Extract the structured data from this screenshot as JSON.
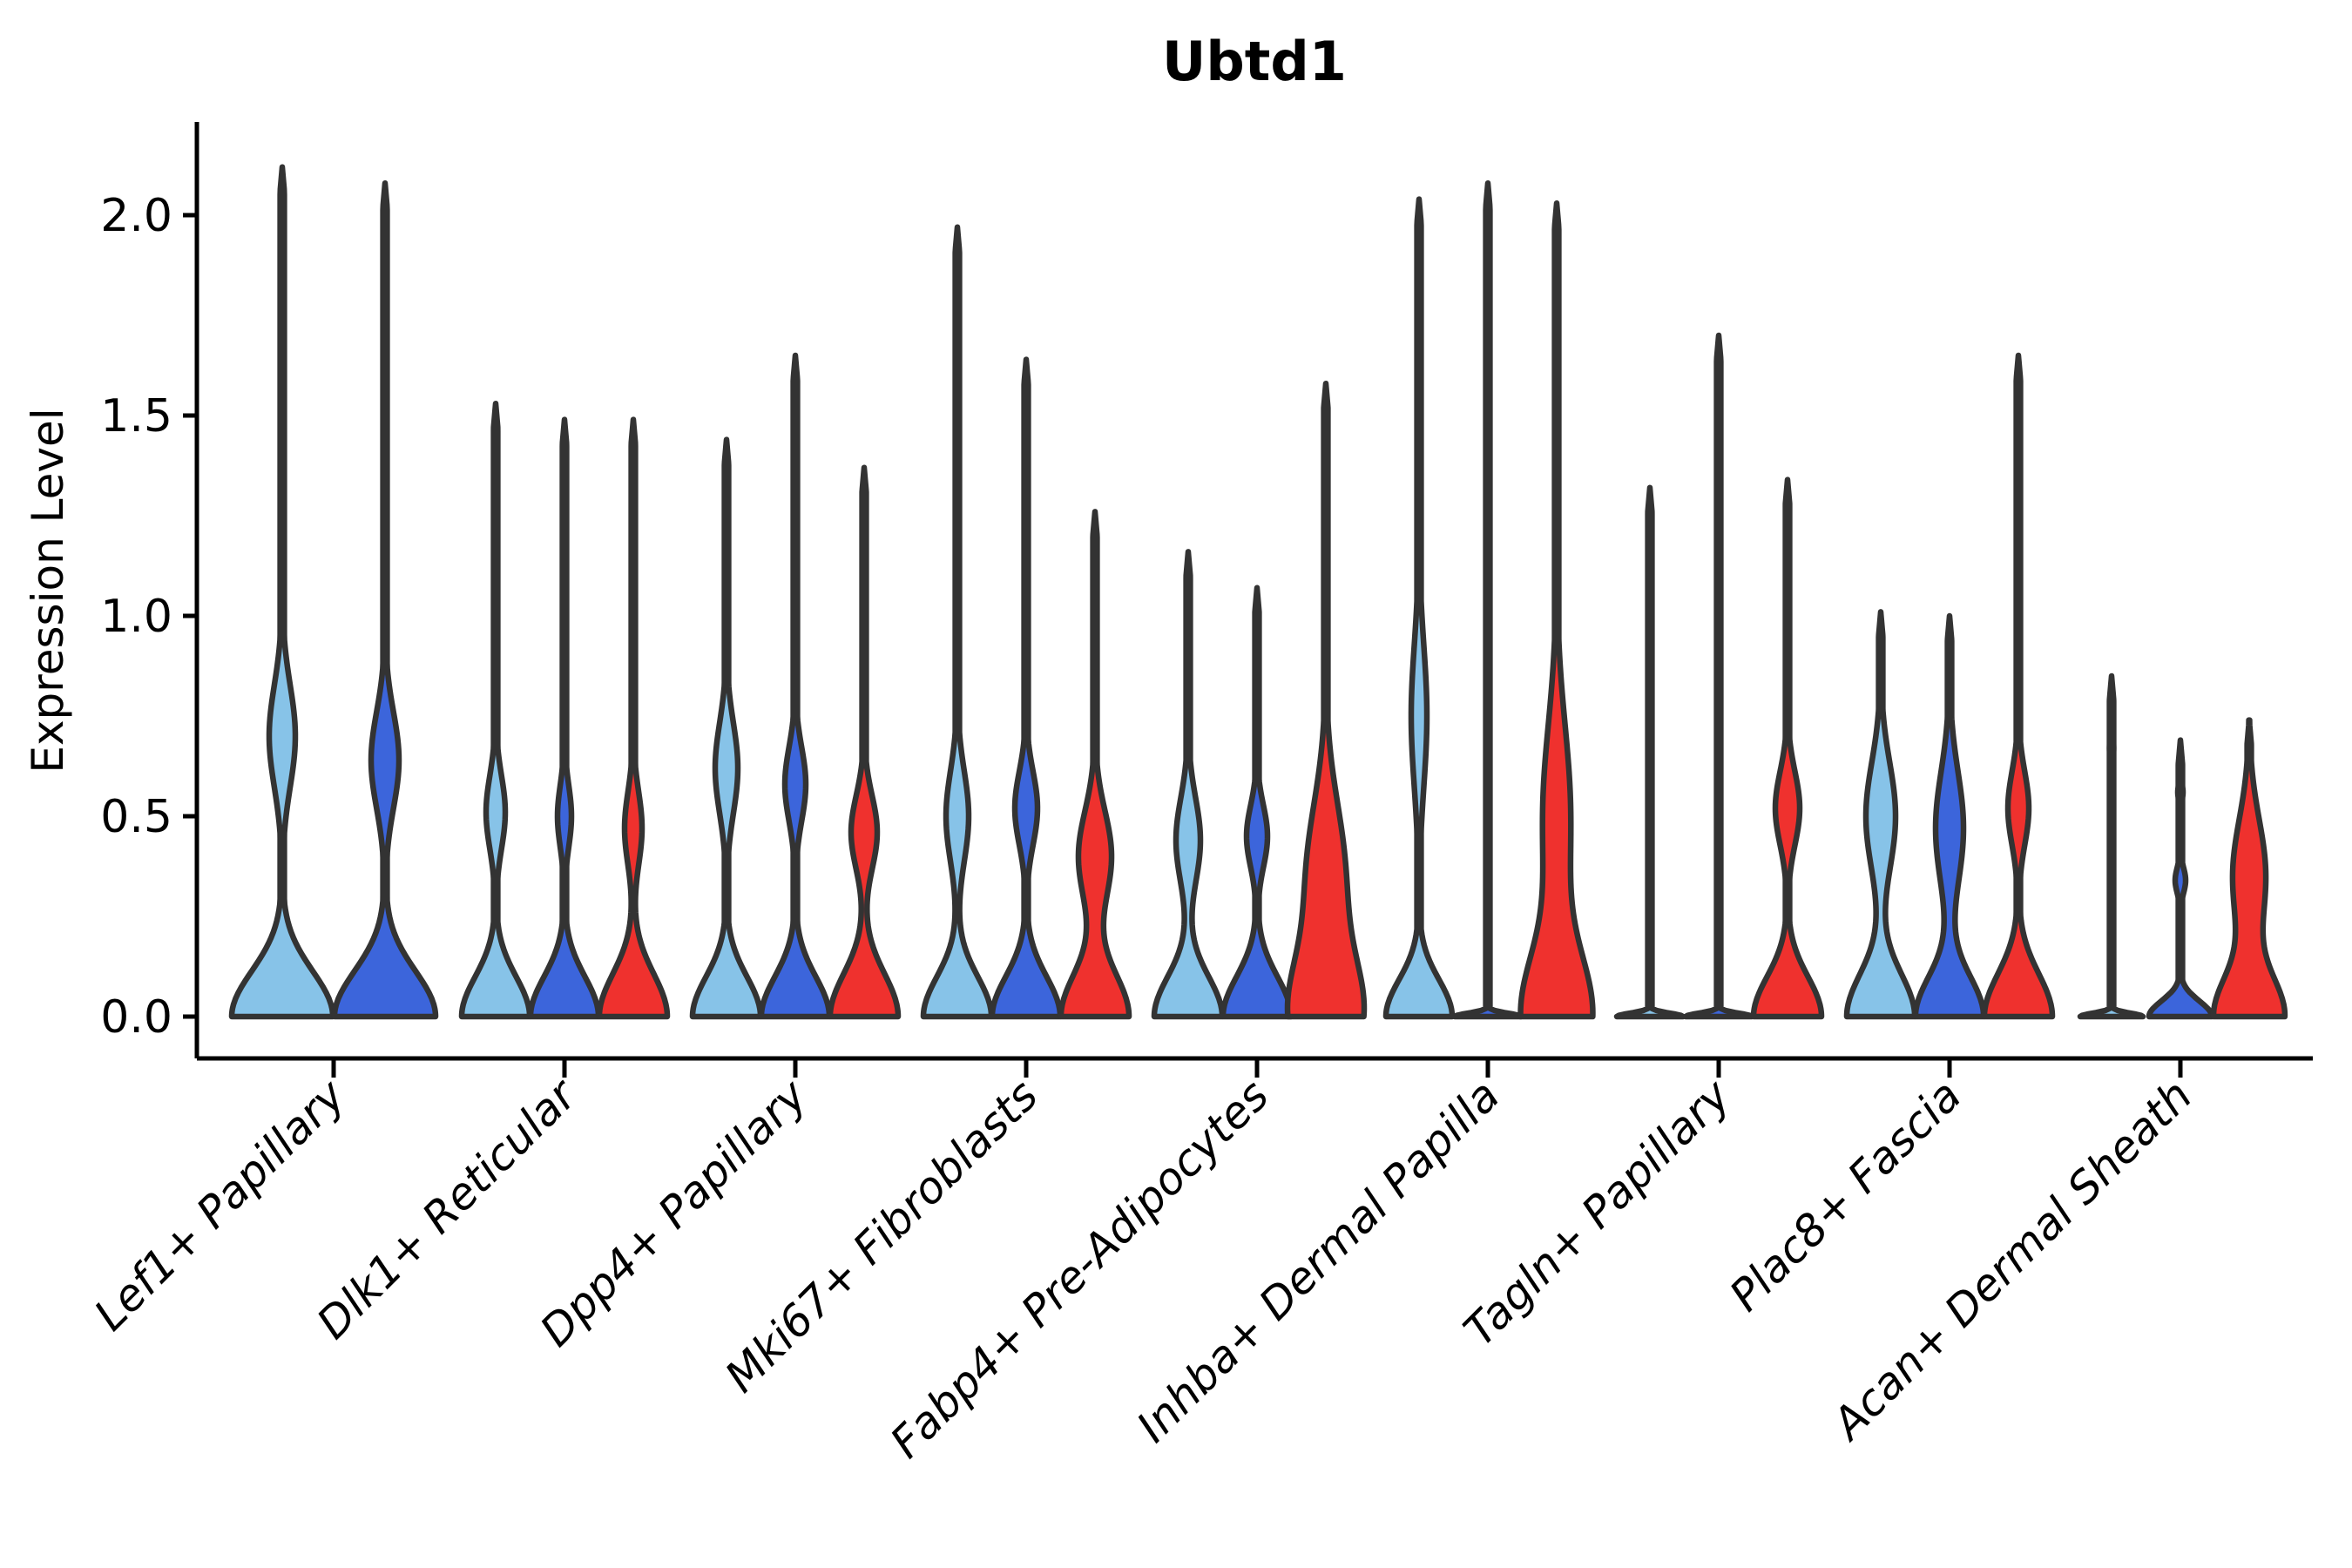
{
  "figure": {
    "title": "Ubtd1",
    "y_axis_label": "Expression Level"
  },
  "chart_data": {
    "type": "violin",
    "title": "Ubtd1",
    "ylabel": "Expression Level",
    "xlabel": "",
    "ylim": [
      -0.1,
      2.23
    ],
    "yticks": [
      "0.0",
      "0.5",
      "1.0",
      "1.5",
      "2.0"
    ],
    "ytick_values": [
      0.0,
      0.5,
      1.0,
      1.5,
      2.0
    ],
    "grid": false,
    "legend_position": "none",
    "series": [
      "light_blue",
      "dark_blue",
      "red"
    ],
    "colors": {
      "light_blue": "#87C3E8",
      "dark_blue": "#3C65DB",
      "red": "#EF312E",
      "outline": "#333333",
      "axis": "#000000"
    },
    "categories": [
      "Lef1+ Papillary",
      "Dlk1+ Reticular",
      "Dpp4+ Papillary",
      "Mki67+ Fibroblasts",
      "Fabp4+ Pre-Adipocytes",
      "Inhba+ Dermal Papilla",
      "Tagln+ Papillary",
      "Plac8+ Fascia",
      "Acan+ Dermal Sheath"
    ],
    "violins": [
      {
        "category": 0,
        "series": "light_blue",
        "max": 2.12,
        "base": [
          58,
          0.16
        ],
        "bulges": [
          [
            0.7,
            15,
            0.18
          ]
        ]
      },
      {
        "category": 0,
        "series": "dark_blue",
        "max": 2.08,
        "base": [
          58,
          0.16
        ],
        "bulges": [
          [
            0.64,
            16,
            0.17
          ]
        ]
      },
      {
        "category": 1,
        "series": "light_blue",
        "max": 1.53,
        "base": [
          39,
          0.14
        ],
        "bulges": [
          [
            0.51,
            11,
            0.13
          ]
        ]
      },
      {
        "category": 1,
        "series": "dark_blue",
        "max": 1.49,
        "base": [
          39,
          0.14
        ],
        "bulges": [
          [
            0.5,
            8,
            0.11
          ]
        ]
      },
      {
        "category": 1,
        "series": "red",
        "max": 1.49,
        "base": [
          39,
          0.15
        ],
        "bulges": [
          [
            0.47,
            10,
            0.13
          ]
        ]
      },
      {
        "category": 2,
        "series": "light_blue",
        "max": 1.44,
        "base": [
          39,
          0.14
        ],
        "bulges": [
          [
            0.62,
            13,
            0.16
          ]
        ]
      },
      {
        "category": 2,
        "series": "dark_blue",
        "max": 1.65,
        "base": [
          39,
          0.14
        ],
        "bulges": [
          [
            0.58,
            12,
            0.13
          ]
        ]
      },
      {
        "category": 2,
        "series": "red",
        "max": 1.37,
        "base": [
          39,
          0.15
        ],
        "bulges": [
          [
            0.46,
            15,
            0.13
          ]
        ]
      },
      {
        "category": 3,
        "series": "light_blue",
        "max": 1.97,
        "base": [
          39,
          0.14
        ],
        "bulges": [
          [
            0.5,
            13,
            0.16
          ]
        ]
      },
      {
        "category": 3,
        "series": "dark_blue",
        "max": 1.64,
        "base": [
          39,
          0.14
        ],
        "bulges": [
          [
            0.52,
            13,
            0.13
          ]
        ]
      },
      {
        "category": 3,
        "series": "red",
        "max": 1.26,
        "base": [
          39,
          0.15
        ],
        "bulges": [
          [
            0.4,
            19,
            0.16
          ]
        ]
      },
      {
        "category": 4,
        "series": "light_blue",
        "max": 1.16,
        "base": [
          39,
          0.14
        ],
        "bulges": [
          [
            0.44,
            14,
            0.15
          ]
        ]
      },
      {
        "category": 4,
        "series": "dark_blue",
        "max": 1.07,
        "base": [
          39,
          0.14
        ],
        "bulges": [
          [
            0.45,
            12,
            0.11
          ]
        ]
      },
      {
        "category": 4,
        "series": "red",
        "max": 1.58,
        "base": [
          40,
          0.2
        ],
        "bulges": [
          [
            0.35,
            22,
            0.26
          ]
        ]
      },
      {
        "category": 5,
        "series": "light_blue",
        "max": 2.04,
        "base": [
          38,
          0.13
        ],
        "bulges": [
          [
            0.75,
            9,
            0.25
          ]
        ]
      },
      {
        "category": 5,
        "series": "dark_blue",
        "max": 2.08,
        "base": [
          38,
          0.012
        ],
        "bulges": []
      },
      {
        "category": 5,
        "series": "red",
        "max": 2.03,
        "base": [
          40,
          0.22
        ],
        "bulges": [
          [
            0.5,
            16,
            0.32
          ]
        ]
      },
      {
        "category": 6,
        "series": "light_blue",
        "max": 1.32,
        "base": [
          38,
          0.012
        ],
        "bulges": []
      },
      {
        "category": 6,
        "series": "dark_blue",
        "max": 1.7,
        "base": [
          38,
          0.012
        ],
        "bulges": []
      },
      {
        "category": 6,
        "series": "red",
        "max": 1.34,
        "base": [
          39,
          0.14
        ],
        "bulges": [
          [
            0.52,
            14,
            0.13
          ]
        ]
      },
      {
        "category": 7,
        "series": "light_blue",
        "max": 1.01,
        "base": [
          39,
          0.15
        ],
        "bulges": [
          [
            0.5,
            17,
            0.19
          ]
        ]
      },
      {
        "category": 7,
        "series": "dark_blue",
        "max": 1.0,
        "base": [
          39,
          0.14
        ],
        "bulges": [
          [
            0.47,
            16,
            0.2
          ]
        ]
      },
      {
        "category": 7,
        "series": "red",
        "max": 1.65,
        "base": [
          39,
          0.15
        ],
        "bulges": [
          [
            0.52,
            12,
            0.13
          ]
        ]
      },
      {
        "category": 8,
        "series": "light_blue",
        "max": 0.85,
        "base": [
          36,
          0.012
        ],
        "bulges": [
          [
            0.67,
            2.5,
            0.04
          ],
          [
            0.45,
            2,
            0.03
          ]
        ]
      },
      {
        "category": 8,
        "series": "dark_blue",
        "max": 0.69,
        "base": [
          36,
          0.055
        ],
        "bulges": [
          [
            0.34,
            6,
            0.045
          ],
          [
            0.56,
            3,
            0.03
          ]
        ]
      },
      {
        "category": 8,
        "series": "red",
        "max": 0.74,
        "base": [
          40,
          0.14
        ],
        "bulges": [
          [
            0.35,
            19,
            0.2
          ]
        ]
      }
    ]
  }
}
